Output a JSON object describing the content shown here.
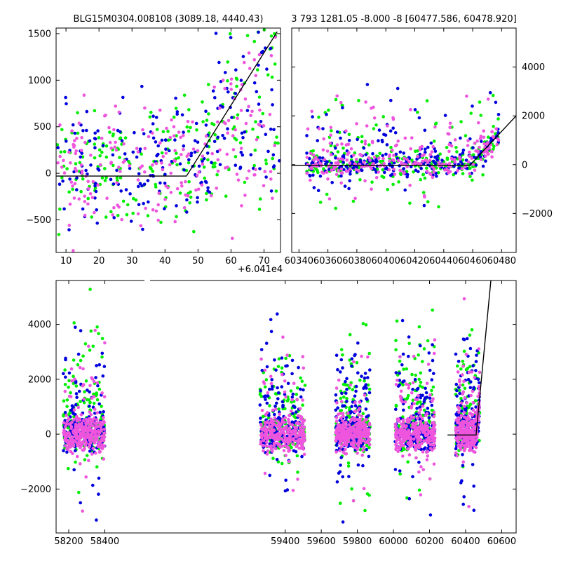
{
  "figure": {
    "top_left_title": "BLG15M0304.008108 (3089.18, 4440.43)",
    "top_right_title": "3 793 1281.05 -8.000 -8 [60477.586, 60478.920]",
    "offset_label": "+6.041e4"
  },
  "colors": {
    "green": "#00ee00",
    "blue": "#0000dd",
    "magenta": "#ee55dd",
    "model_line": "#000000"
  },
  "chart_data": [
    {
      "type": "scatter",
      "panel": "top-left",
      "title": "BLG15M0304.008108 (3089.18, 4440.43)",
      "x_offset_label": "+6.041e4",
      "xlim": [
        7,
        75
      ],
      "ylim": [
        -850,
        1560
      ],
      "xticks": [
        10,
        20,
        30,
        40,
        50,
        60,
        70
      ],
      "yticks": [
        -500,
        0,
        500,
        1000,
        1500
      ],
      "tick_side": "left",
      "series_colors": [
        "green",
        "blue",
        "magenta"
      ],
      "model": [
        [
          7,
          -30
        ],
        [
          46.5,
          -30
        ],
        [
          74,
          1520
        ]
      ],
      "scatter_density": {
        "x_center": 40,
        "x_spread": 33,
        "y_center": 200,
        "y_spread": 450,
        "points_per_series": 220
      }
    },
    {
      "type": "scatter",
      "panel": "top-right",
      "title": "3 793 1281.05 -8.000 -8 [60477.586, 60478.920]",
      "xlim": [
        60335,
        60490
      ],
      "ylim": [
        -3600,
        5600
      ],
      "xticks": [
        60340,
        60360,
        60380,
        60400,
        60420,
        60440,
        60460,
        60480
      ],
      "yticks": [
        -2000,
        0,
        2000,
        4000
      ],
      "tick_side": "right",
      "series_colors": [
        "green",
        "blue",
        "magenta"
      ],
      "model": [
        [
          60335,
          -30
        ],
        [
          60458,
          -30
        ],
        [
          60490,
          2000
        ]
      ],
      "scatter_density": {
        "x_range": [
          60345,
          60478
        ],
        "core_y_spread": 250,
        "outlier_y_range": [
          -3300,
          5300
        ],
        "points_per_series": 260
      }
    },
    {
      "type": "scatter",
      "panel": "bottom",
      "xlim": [
        58130,
        60680
      ],
      "ylim": [
        -3600,
        5600
      ],
      "xticks": [
        58200,
        58400,
        59400,
        59600,
        59800,
        60000,
        60200,
        60400,
        60600
      ],
      "yticks": [
        -2000,
        0,
        2000,
        4000
      ],
      "tick_side": "left",
      "series_colors": [
        "green",
        "blue",
        "magenta"
      ],
      "seasons": [
        [
          58170,
          58400
        ],
        [
          59260,
          59510
        ],
        [
          59680,
          59870
        ],
        [
          60010,
          60230
        ],
        [
          60345,
          60478
        ]
      ],
      "model": [
        [
          60300,
          -30
        ],
        [
          60458,
          -30
        ],
        [
          60540,
          5600
        ]
      ],
      "scatter_density": {
        "core_y_spread": 300,
        "outlier_y_range": [
          -3400,
          5500
        ],
        "points_per_season": 230
      }
    }
  ]
}
